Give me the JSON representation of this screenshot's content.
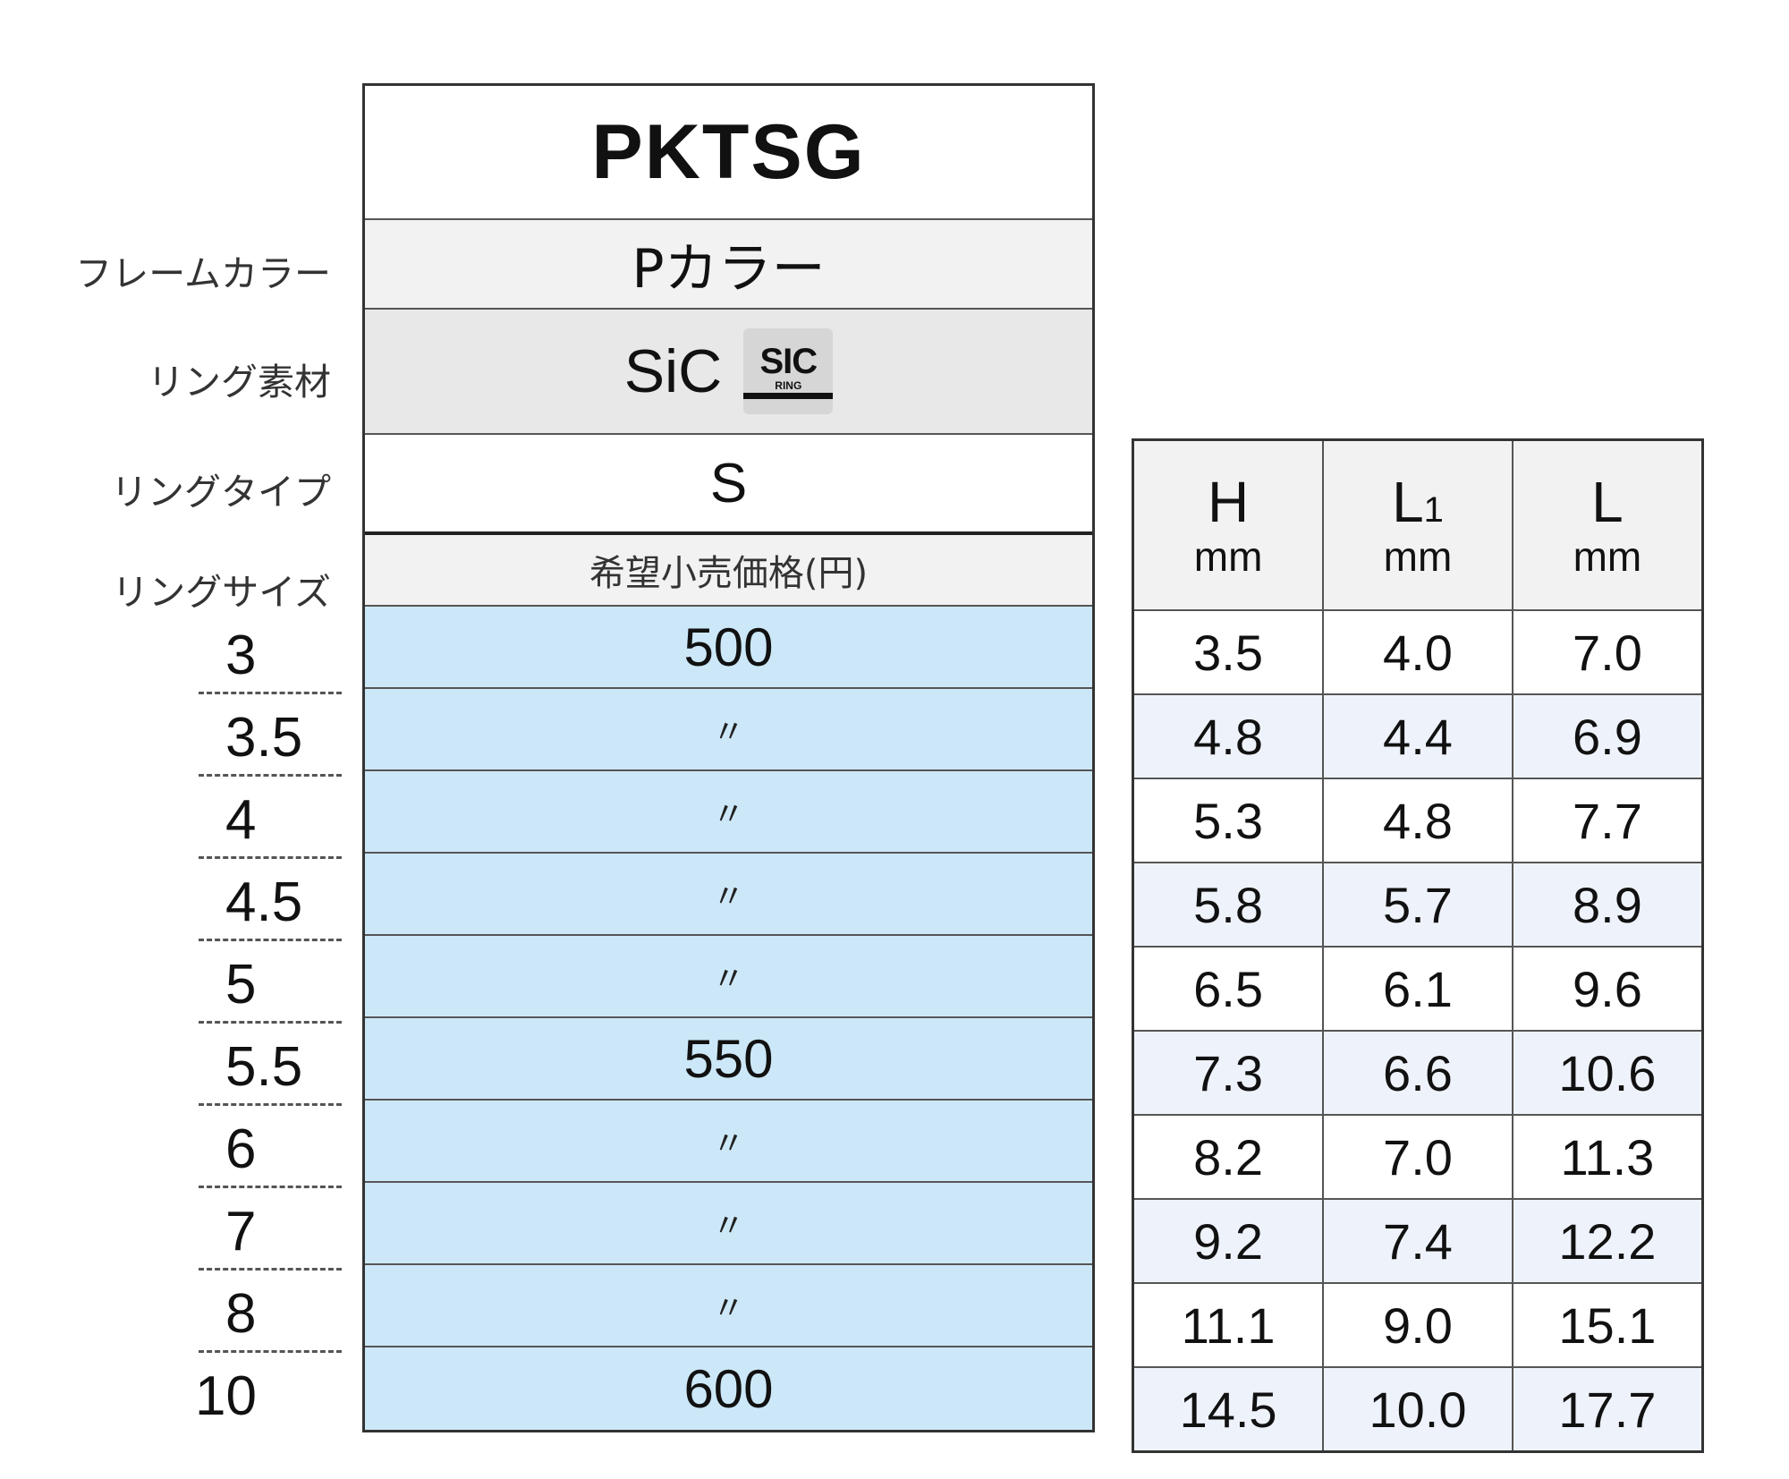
{
  "title": "PKTSG",
  "labels": {
    "frame_color": "フレームカラー",
    "ring_material": "リング素材",
    "ring_type": "リングタイプ",
    "ring_size": "リングサイズ"
  },
  "values": {
    "frame_color": "Pカラー",
    "ring_material": "SiC",
    "ring_type": "S",
    "price_header": "希望小売価格(円)"
  },
  "logo": {
    "main": "SIC",
    "sub": "RING"
  },
  "sizes": [
    "3",
    "3.5",
    "4",
    "4.5",
    "5",
    "5.5",
    "6",
    "7",
    "8",
    "10"
  ],
  "prices": [
    "500",
    "〃",
    "〃",
    "〃",
    "〃",
    "550",
    "〃",
    "〃",
    "〃",
    "600"
  ],
  "dimensions": {
    "headers": [
      {
        "name": "H",
        "sub": "",
        "unit": "mm"
      },
      {
        "name": "L",
        "sub": "1",
        "unit": "mm"
      },
      {
        "name": "L",
        "sub": "",
        "unit": "mm"
      }
    ],
    "rows": [
      [
        "3.5",
        "4.0",
        "7.0"
      ],
      [
        "4.8",
        "4.4",
        "6.9"
      ],
      [
        "5.3",
        "4.8",
        "7.7"
      ],
      [
        "5.8",
        "5.7",
        "8.9"
      ],
      [
        "6.5",
        "6.1",
        "9.6"
      ],
      [
        "7.3",
        "6.6",
        "10.6"
      ],
      [
        "8.2",
        "7.0",
        "11.3"
      ],
      [
        "9.2",
        "7.4",
        "12.2"
      ],
      [
        "11.1",
        "9.0",
        "15.1"
      ],
      [
        "14.5",
        "10.0",
        "17.7"
      ]
    ]
  },
  "colors": {
    "price_bg": "#cce8f8",
    "alt_row_bg": "#eef3fb",
    "header_bg": "#f2f2f2"
  }
}
